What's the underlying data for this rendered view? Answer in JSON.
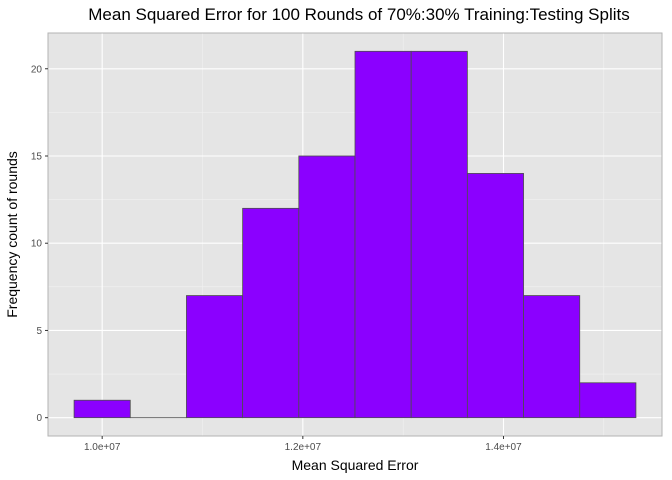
{
  "chart_data": {
    "type": "bar",
    "title": "Mean Squared Error for 100 Rounds of 70%:30% Training:Testing Splits",
    "xlabel": "Mean Squared Error",
    "ylabel": "Frequency count of rounds",
    "bins": [
      {
        "x0": 9720000,
        "x1": 10280000,
        "count": 1
      },
      {
        "x0": 10280000,
        "x1": 10840000,
        "count": 0
      },
      {
        "x0": 10840000,
        "x1": 11400000,
        "count": 7
      },
      {
        "x0": 11400000,
        "x1": 11960000,
        "count": 12
      },
      {
        "x0": 11960000,
        "x1": 12520000,
        "count": 15
      },
      {
        "x0": 12520000,
        "x1": 13080000,
        "count": 21
      },
      {
        "x0": 13080000,
        "x1": 13640000,
        "count": 21
      },
      {
        "x0": 13640000,
        "x1": 14200000,
        "count": 14
      },
      {
        "x0": 14200000,
        "x1": 14760000,
        "count": 7
      },
      {
        "x0": 14760000,
        "x1": 15320000,
        "count": 2
      }
    ],
    "xlim": [
      9460000,
      15580000
    ],
    "ylim": [
      -1.05,
      22.05
    ],
    "x_ticks": [
      {
        "value": 10000000,
        "label": "1.0e+07"
      },
      {
        "value": 12000000,
        "label": "1.2e+07"
      },
      {
        "value": 14000000,
        "label": "1.4e+07"
      }
    ],
    "y_ticks": [
      {
        "value": 0,
        "label": "0"
      },
      {
        "value": 5,
        "label": "5"
      },
      {
        "value": 10,
        "label": "10"
      },
      {
        "value": 15,
        "label": "15"
      },
      {
        "value": 20,
        "label": "20"
      }
    ],
    "grid": true,
    "colors": {
      "fill": "#8b00ff",
      "outline": "#4d4d4d",
      "panel_background": "#e5e5e5",
      "grid_major": "#ffffff",
      "grid_minor": "#f2f2f2",
      "panel_border": "#b3b3b3"
    }
  }
}
